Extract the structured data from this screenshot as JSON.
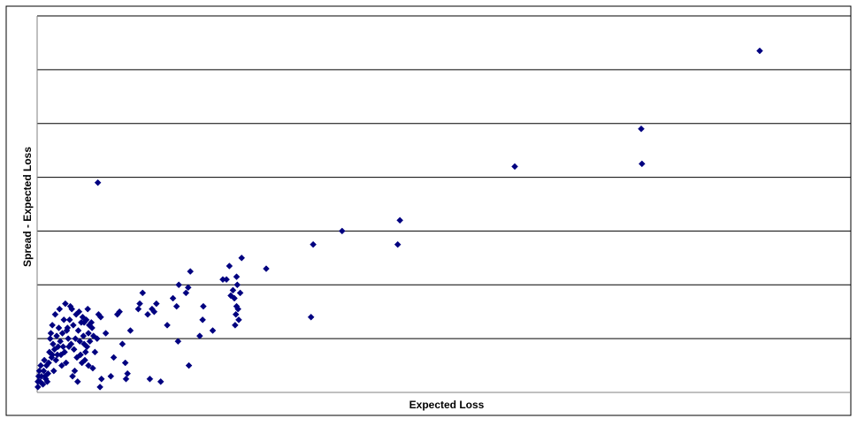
{
  "chart_data": {
    "type": "scatter",
    "title": "",
    "xlabel": "Expected Loss",
    "ylabel": "Spread - Expected Loss",
    "xlim": [
      0,
      100
    ],
    "ylim": [
      0,
      7
    ],
    "grid": "horizontal",
    "legend": "none",
    "colors": {
      "point": "#000080",
      "grid": "#000000",
      "axis": "#808080",
      "frame": "#000000"
    },
    "series": [
      {
        "marker": "diamond",
        "points": [
          [
            0.1,
            0.1
          ],
          [
            0.1,
            0.2
          ],
          [
            0.2,
            0.3
          ],
          [
            0.3,
            0.4
          ],
          [
            0.4,
            0.2
          ],
          [
            0.5,
            0.5
          ],
          [
            0.6,
            0.3
          ],
          [
            0.8,
            0.15
          ],
          [
            0.9,
            0.4
          ],
          [
            1.0,
            0.6
          ],
          [
            1.1,
            0.3
          ],
          [
            1.2,
            0.25
          ],
          [
            1.3,
            0.5
          ],
          [
            1.4,
            0.2
          ],
          [
            1.5,
            0.35
          ],
          [
            1.6,
            0.55
          ],
          [
            1.7,
            0.75
          ],
          [
            1.8,
            1.0
          ],
          [
            1.9,
            1.1
          ],
          [
            2.0,
            0.65
          ],
          [
            2.1,
            0.7
          ],
          [
            2.1,
            1.25
          ],
          [
            2.2,
            0.9
          ],
          [
            2.3,
            0.4
          ],
          [
            2.4,
            0.8
          ],
          [
            2.5,
            1.45
          ],
          [
            2.6,
            0.6
          ],
          [
            2.7,
            1.05
          ],
          [
            2.8,
            0.7
          ],
          [
            2.9,
            0.85
          ],
          [
            3.0,
            1.2
          ],
          [
            3.1,
            1.55
          ],
          [
            3.2,
            0.95
          ],
          [
            3.3,
            0.7
          ],
          [
            3.4,
            0.5
          ],
          [
            3.5,
            1.1
          ],
          [
            3.6,
            0.85
          ],
          [
            3.7,
            1.35
          ],
          [
            3.8,
            0.75
          ],
          [
            3.9,
            1.65
          ],
          [
            4.0,
            0.55
          ],
          [
            4.1,
            1.15
          ],
          [
            4.2,
            1.2
          ],
          [
            4.3,
            1.0
          ],
          [
            4.4,
            0.85
          ],
          [
            4.5,
            1.35
          ],
          [
            4.6,
            1.6
          ],
          [
            4.7,
            0.9
          ],
          [
            4.8,
            1.55
          ],
          [
            4.9,
            0.3
          ],
          [
            5.0,
            1.25
          ],
          [
            5.1,
            0.8
          ],
          [
            5.2,
            0.4
          ],
          [
            5.3,
            1.0
          ],
          [
            5.4,
            1.45
          ],
          [
            5.5,
            0.65
          ],
          [
            5.6,
            0.2
          ],
          [
            5.7,
            1.15
          ],
          [
            5.8,
            1.5
          ],
          [
            5.9,
            0.95
          ],
          [
            6.0,
            0.7
          ],
          [
            6.1,
            1.3
          ],
          [
            6.2,
            0.55
          ],
          [
            6.3,
            1.4
          ],
          [
            6.4,
            1.05
          ],
          [
            6.5,
            1.3
          ],
          [
            6.5,
            0.9
          ],
          [
            6.6,
            0.6
          ],
          [
            6.7,
            0.75
          ],
          [
            6.8,
            1.35
          ],
          [
            6.9,
            0.85
          ],
          [
            7.0,
            1.55
          ],
          [
            7.1,
            0.5
          ],
          [
            7.1,
            1.1
          ],
          [
            7.2,
            1.25
          ],
          [
            7.3,
            0.95
          ],
          [
            7.5,
            1.3
          ],
          [
            7.6,
            1.2
          ],
          [
            7.7,
            0.45
          ],
          [
            7.8,
            1.05
          ],
          [
            8.0,
            0.75
          ],
          [
            8.3,
            1.0
          ],
          [
            8.5,
            1.45
          ],
          [
            8.8,
            1.4
          ],
          [
            8.7,
            0.1
          ],
          [
            8.9,
            0.25
          ],
          [
            8.4,
            3.9
          ],
          [
            9.5,
            1.1
          ],
          [
            10.2,
            0.3
          ],
          [
            10.6,
            0.65
          ],
          [
            11.1,
            1.45
          ],
          [
            11.4,
            1.5
          ],
          [
            11.8,
            0.9
          ],
          [
            12.2,
            0.55
          ],
          [
            12.3,
            0.25
          ],
          [
            12.5,
            0.35
          ],
          [
            12.9,
            1.15
          ],
          [
            14.0,
            1.55
          ],
          [
            14.2,
            1.65
          ],
          [
            14.6,
            1.85
          ],
          [
            15.3,
            1.45
          ],
          [
            15.6,
            0.25
          ],
          [
            15.9,
            1.55
          ],
          [
            16.2,
            1.5
          ],
          [
            16.5,
            1.65
          ],
          [
            17.1,
            0.2
          ],
          [
            18.0,
            1.25
          ],
          [
            18.8,
            1.75
          ],
          [
            19.3,
            1.6
          ],
          [
            19.6,
            2.0
          ],
          [
            19.5,
            0.95
          ],
          [
            20.6,
            1.85
          ],
          [
            20.9,
            1.95
          ],
          [
            21.0,
            0.5
          ],
          [
            21.2,
            2.25
          ],
          [
            22.5,
            1.05
          ],
          [
            22.9,
            1.35
          ],
          [
            23.0,
            1.6
          ],
          [
            24.3,
            1.15
          ],
          [
            25.7,
            2.1
          ],
          [
            26.2,
            2.1
          ],
          [
            26.6,
            2.35
          ],
          [
            26.8,
            1.8
          ],
          [
            27.1,
            1.9
          ],
          [
            27.3,
            1.75
          ],
          [
            27.5,
            1.45
          ],
          [
            27.4,
            1.25
          ],
          [
            27.6,
            1.6
          ],
          [
            27.7,
            2.0
          ],
          [
            27.8,
            1.55
          ],
          [
            27.6,
            2.15
          ],
          [
            27.9,
            1.35
          ],
          [
            28.1,
            1.85
          ],
          [
            28.3,
            2.5
          ],
          [
            31.7,
            2.3
          ],
          [
            37.9,
            1.4
          ],
          [
            38.2,
            2.75
          ],
          [
            42.2,
            3.0
          ],
          [
            49.9,
            2.75
          ],
          [
            50.2,
            3.2
          ],
          [
            66.1,
            4.2
          ],
          [
            83.6,
            4.9
          ],
          [
            83.7,
            4.25
          ],
          [
            100.0,
            6.35
          ]
        ]
      }
    ]
  }
}
